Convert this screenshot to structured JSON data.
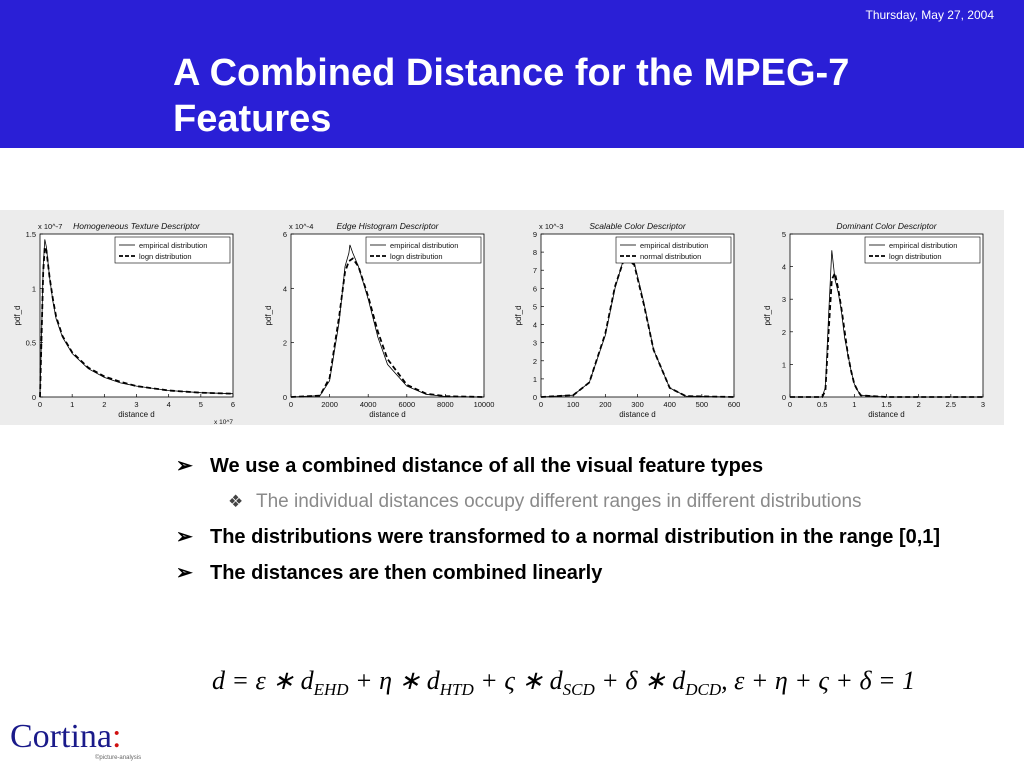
{
  "header": {
    "date": "Thursday, May 27, 2004",
    "title": "A  Combined Distance for the MPEG-7 Features",
    "background_color": "#2a1fd6"
  },
  "bullets": [
    {
      "level": 1,
      "text": "We use a combined distance of all the visual feature types"
    },
    {
      "level": 2,
      "text": "The individual distances occupy different ranges in different distributions"
    },
    {
      "level": 1,
      "text": "The distributions were transformed to a normal distribution in the range [0,1]"
    },
    {
      "level": 1,
      "text": "The distances are then combined linearly"
    }
  ],
  "bullet_marks": {
    "level1": "➢",
    "level2": "❖"
  },
  "formula": {
    "lhs": "d = ε ∗ d",
    "sub_ehd": "EHD",
    "mid1": " + η ∗ d",
    "sub_htd": "HTD",
    "mid2": " + ς ∗ d",
    "sub_scd": "SCD",
    "mid3": " + δ ∗ d",
    "sub_dcd": "DCD",
    "rhs": ",   ε + η + ς + δ = 1"
  },
  "logo": {
    "text": "Cortina",
    "colon": ":",
    "subtext": "©picture-analysis"
  },
  "chart_data": [
    {
      "type": "line",
      "title": "Homogeneous Texture Descriptor",
      "xlabel": "distance d",
      "ylabel": "pdf_d",
      "y_multiplier": "x 10^-7",
      "x_multiplier": "x 10^7",
      "xlim": [
        0,
        6
      ],
      "ylim": [
        0,
        1.5
      ],
      "xticks": [
        "0",
        "1",
        "2",
        "3",
        "4",
        "5",
        "6"
      ],
      "yticks": [
        "0",
        "0.5",
        "1",
        "1.5"
      ],
      "legend": "top-right",
      "series": [
        {
          "name": "empirical distribution",
          "style": "solid",
          "x": [
            0,
            0.1,
            0.15,
            0.2,
            0.3,
            0.4,
            0.5,
            0.7,
            1,
            1.5,
            2,
            2.5,
            3,
            4,
            5,
            6
          ],
          "y": [
            0,
            1.2,
            1.45,
            1.38,
            1.1,
            0.88,
            0.72,
            0.55,
            0.4,
            0.26,
            0.18,
            0.13,
            0.1,
            0.06,
            0.04,
            0.03
          ]
        },
        {
          "name": "logn distribution",
          "style": "dashed",
          "x": [
            0,
            0.1,
            0.15,
            0.2,
            0.3,
            0.4,
            0.5,
            0.7,
            1,
            1.5,
            2,
            2.5,
            3,
            4,
            5,
            6
          ],
          "y": [
            0,
            1.15,
            1.38,
            1.35,
            1.1,
            0.9,
            0.74,
            0.56,
            0.41,
            0.27,
            0.19,
            0.14,
            0.1,
            0.06,
            0.04,
            0.03
          ]
        }
      ]
    },
    {
      "type": "line",
      "title": "Edge Histogram Descriptor",
      "xlabel": "distance d",
      "ylabel": "pdf_d",
      "y_multiplier": "x 10^-4",
      "xlim": [
        0,
        10000
      ],
      "ylim": [
        0,
        6
      ],
      "xticks": [
        "0",
        "2000",
        "4000",
        "6000",
        "8000",
        "10000"
      ],
      "yticks": [
        "0",
        "2",
        "4",
        "6"
      ],
      "legend": "top-right",
      "series": [
        {
          "name": "empirical distribution",
          "style": "solid",
          "x": [
            0,
            1500,
            2000,
            2500,
            2800,
            3000,
            3050,
            3200,
            3500,
            4000,
            4500,
            5000,
            6000,
            7000,
            8000,
            10000
          ],
          "y": [
            0,
            0.05,
            0.6,
            2.8,
            4.8,
            5.3,
            5.6,
            5.3,
            4.8,
            3.6,
            2.2,
            1.2,
            0.4,
            0.1,
            0.02,
            0
          ]
        },
        {
          "name": "logn distribution",
          "style": "dashed",
          "x": [
            0,
            1500,
            2000,
            2500,
            2800,
            3000,
            3200,
            3500,
            4000,
            4500,
            5000,
            6000,
            7000,
            8000,
            10000
          ],
          "y": [
            0,
            0.05,
            0.7,
            3.0,
            4.6,
            5.0,
            5.1,
            4.8,
            3.7,
            2.4,
            1.4,
            0.45,
            0.12,
            0.03,
            0
          ]
        }
      ]
    },
    {
      "type": "line",
      "title": "Scalable Color Descriptor",
      "xlabel": "distance d",
      "ylabel": "pdf_d",
      "y_multiplier": "x 10^-3",
      "xlim": [
        0,
        600
      ],
      "ylim": [
        0,
        9
      ],
      "xticks": [
        "0",
        "100",
        "200",
        "300",
        "400",
        "500",
        "600"
      ],
      "yticks": [
        "0",
        "1",
        "2",
        "3",
        "4",
        "5",
        "6",
        "7",
        "8",
        "9"
      ],
      "legend": "top-right",
      "series": [
        {
          "name": "empirical distribution",
          "style": "solid",
          "x": [
            0,
            100,
            150,
            200,
            230,
            260,
            290,
            320,
            350,
            400,
            450,
            600
          ],
          "y": [
            0,
            0.1,
            0.8,
            3.4,
            6.0,
            7.8,
            7.4,
            5.2,
            2.6,
            0.5,
            0.05,
            0
          ]
        },
        {
          "name": "normal distribution",
          "style": "dashed",
          "x": [
            0,
            100,
            150,
            200,
            230,
            260,
            290,
            320,
            350,
            400,
            450,
            600
          ],
          "y": [
            0,
            0.1,
            0.8,
            3.5,
            6.1,
            7.7,
            7.3,
            5.1,
            2.6,
            0.5,
            0.05,
            0
          ]
        }
      ]
    },
    {
      "type": "line",
      "title": "Dominant Color Descriptor",
      "xlabel": "distance d",
      "ylabel": "pdf_d",
      "xlim": [
        0,
        3
      ],
      "ylim": [
        0,
        5
      ],
      "xticks": [
        "0",
        "0.5",
        "1",
        "1.5",
        "2",
        "2.5",
        "3"
      ],
      "yticks": [
        "0",
        "1",
        "2",
        "3",
        "4",
        "5"
      ],
      "legend": "top-right",
      "series": [
        {
          "name": "empirical distribution",
          "style": "solid",
          "x": [
            0,
            0.5,
            0.55,
            0.6,
            0.65,
            0.7,
            0.75,
            0.8,
            0.85,
            0.9,
            0.95,
            1,
            1.05,
            1.1,
            1.5,
            3
          ],
          "y": [
            0,
            0,
            0.3,
            2.5,
            4.5,
            3.6,
            3.2,
            2.6,
            1.8,
            1.3,
            0.8,
            0.4,
            0.2,
            0.05,
            0,
            0
          ]
        },
        {
          "name": "logn distribution",
          "style": "dashed",
          "x": [
            0,
            0.5,
            0.55,
            0.6,
            0.65,
            0.7,
            0.75,
            0.8,
            0.85,
            0.9,
            0.95,
            1,
            1.05,
            1.1,
            1.5,
            3
          ],
          "y": [
            0,
            0,
            0.2,
            2.0,
            3.6,
            3.8,
            3.3,
            2.7,
            2.0,
            1.3,
            0.8,
            0.4,
            0.2,
            0.05,
            0,
            0
          ]
        }
      ]
    }
  ]
}
